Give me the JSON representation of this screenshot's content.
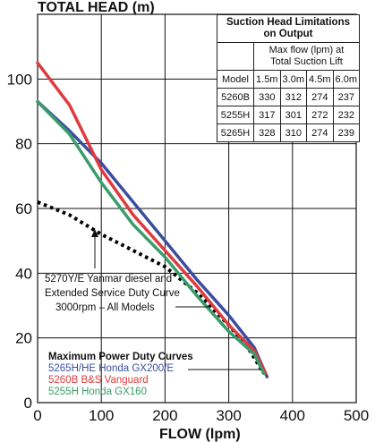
{
  "chart_data": {
    "type": "line",
    "ylabel": "TOTAL HEAD (m)",
    "xlabel": "FLOW (lpm)",
    "xlim": [
      0,
      500
    ],
    "ylim": [
      0,
      120
    ],
    "xticks": [
      0,
      100,
      200,
      300,
      400,
      500
    ],
    "yticks": [
      0,
      20,
      40,
      60,
      80,
      100
    ],
    "grid": true,
    "series": [
      {
        "name": "5270Y/E Yanmar diesel and Extended Service Duty Curve 3000rpm – All Models",
        "style": "dotted",
        "color": "#000000",
        "x": [
          0,
          50,
          100,
          150,
          200,
          250,
          300,
          330,
          355
        ],
        "y": [
          62,
          58,
          52,
          47,
          42,
          34,
          24,
          17,
          9
        ]
      },
      {
        "name": "5265H/HE Honda GX200/E",
        "style": "solid",
        "color": "#3a4d9f",
        "x": [
          0,
          50,
          100,
          150,
          200,
          250,
          300,
          340,
          360
        ],
        "y": [
          93,
          84,
          74,
          62,
          50,
          38,
          27,
          17,
          8
        ]
      },
      {
        "name": "5260B B&S Vanguard",
        "style": "solid",
        "color": "#e03a3e",
        "x": [
          0,
          50,
          100,
          150,
          200,
          250,
          300,
          340,
          358
        ],
        "y": [
          105,
          92,
          72,
          58,
          47,
          36,
          24,
          16,
          9
        ]
      },
      {
        "name": "5255H Honda GX160",
        "style": "solid",
        "color": "#3a9c6a",
        "x": [
          0,
          50,
          100,
          150,
          200,
          250,
          300,
          340,
          355
        ],
        "y": [
          93,
          83,
          68,
          55,
          45,
          33,
          22,
          15,
          9
        ]
      }
    ]
  },
  "annotation": {
    "lines": [
      "5270Y/E Yanmar diesel and",
      "Extended Service Duty Curve",
      "3000rpm – All Models"
    ]
  },
  "legend": {
    "title": "Maximum Power Duty Curves",
    "items": [
      {
        "label": "5265H/HE Honda GX200/E",
        "color": "#3a4d9f"
      },
      {
        "label": "5260B B&S Vanguard",
        "color": "#e03a3e"
      },
      {
        "label": "5255H Honda GX160",
        "color": "#3a9c6a"
      }
    ]
  },
  "suction_table": {
    "title_line1": "Suction Head Limitations",
    "title_line2": "on Output",
    "subhead_line1": "Max flow (lpm) at",
    "subhead_line2": "Total Suction Lift",
    "model_header": "Model",
    "lift_headers": [
      "1.5m",
      "3.0m",
      "4.5m",
      "6.0m"
    ],
    "rows": [
      {
        "model": "5260B",
        "values": [
          "330",
          "312",
          "274",
          "237"
        ]
      },
      {
        "model": "5255H",
        "values": [
          "317",
          "301",
          "272",
          "232"
        ]
      },
      {
        "model": "5265H",
        "values": [
          "328",
          "310",
          "274",
          "239"
        ]
      }
    ]
  }
}
